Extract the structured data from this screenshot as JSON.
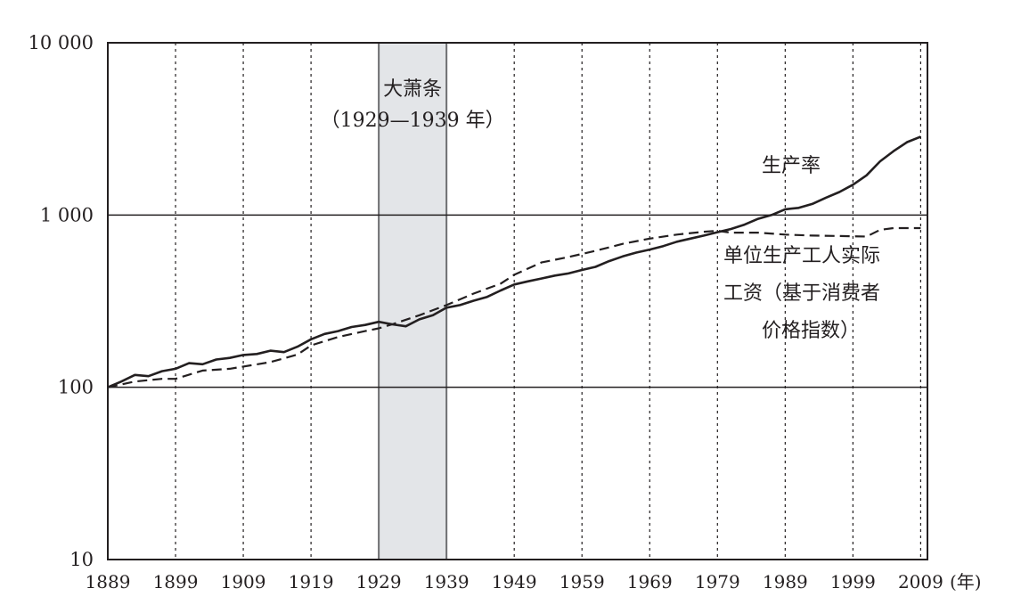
{
  "chart_data": {
    "type": "line",
    "title": "",
    "xlabel": "(年)",
    "ylabel": "",
    "yscale": "log",
    "xlim": [
      1889,
      2010
    ],
    "ylim": [
      10,
      10000
    ],
    "x_ticks": [
      1889,
      1899,
      1909,
      1919,
      1929,
      1939,
      1949,
      1959,
      1969,
      1979,
      1989,
      1999,
      2009
    ],
    "y_ticks": [
      10,
      100,
      1000,
      10000
    ],
    "y_tick_labels": [
      "10",
      "100",
      "1 000",
      "10 000"
    ],
    "grid": {
      "x": "dotted vertical at each tick",
      "y": "solid horizontal at each tick"
    },
    "shaded_region": {
      "x_start": 1929,
      "x_end": 1939,
      "label": "大萧条",
      "sublabel": "（1929—1939 年）",
      "color": "#e3e5e8"
    },
    "series": [
      {
        "name": "生产率",
        "style": "solid",
        "x": [
          1889,
          1891,
          1893,
          1895,
          1897,
          1899,
          1901,
          1903,
          1905,
          1907,
          1909,
          1911,
          1913,
          1915,
          1917,
          1919,
          1921,
          1923,
          1925,
          1927,
          1929,
          1931,
          1933,
          1935,
          1937,
          1939,
          1941,
          1943,
          1945,
          1947,
          1949,
          1951,
          1953,
          1955,
          1957,
          1959,
          1961,
          1963,
          1965,
          1967,
          1969,
          1971,
          1973,
          1975,
          1977,
          1979,
          1981,
          1983,
          1985,
          1987,
          1989,
          1991,
          1993,
          1995,
          1997,
          1999,
          2001,
          2003,
          2005,
          2007,
          2009
        ],
        "y": [
          100,
          108,
          118,
          116,
          124,
          128,
          138,
          136,
          145,
          148,
          154,
          156,
          163,
          160,
          172,
          190,
          204,
          212,
          224,
          230,
          240,
          232,
          226,
          248,
          262,
          290,
          300,
          318,
          335,
          365,
          395,
          412,
          428,
          445,
          458,
          480,
          500,
          540,
          575,
          605,
          630,
          660,
          700,
          730,
          760,
          795,
          830,
          880,
          950,
          1000,
          1080,
          1100,
          1160,
          1260,
          1360,
          1500,
          1700,
          2050,
          2350,
          2650,
          2850
        ]
      },
      {
        "name": "单位生产工人实际工资（基于消费者价格指数）",
        "style": "dashed",
        "x": [
          1889,
          1893,
          1897,
          1899,
          1903,
          1907,
          1909,
          1913,
          1917,
          1919,
          1923,
          1927,
          1929,
          1931,
          1935,
          1939,
          1943,
          1947,
          1949,
          1953,
          1957,
          1961,
          1965,
          1969,
          1973,
          1977,
          1979,
          1981,
          1985,
          1989,
          1993,
          1997,
          2001,
          2003,
          2005,
          2009
        ],
        "y": [
          100,
          108,
          112,
          112,
          125,
          128,
          132,
          140,
          155,
          175,
          196,
          212,
          220,
          232,
          262,
          300,
          350,
          400,
          450,
          530,
          570,
          620,
          680,
          730,
          770,
          800,
          810,
          790,
          790,
          770,
          760,
          755,
          750,
          820,
          840,
          840
        ]
      }
    ],
    "annotations": [
      {
        "text": "生产率"
      },
      {
        "text": "单位生产工人实际"
      },
      {
        "text": "工资（基于消费者"
      },
      {
        "text": "价格指数）"
      }
    ]
  }
}
